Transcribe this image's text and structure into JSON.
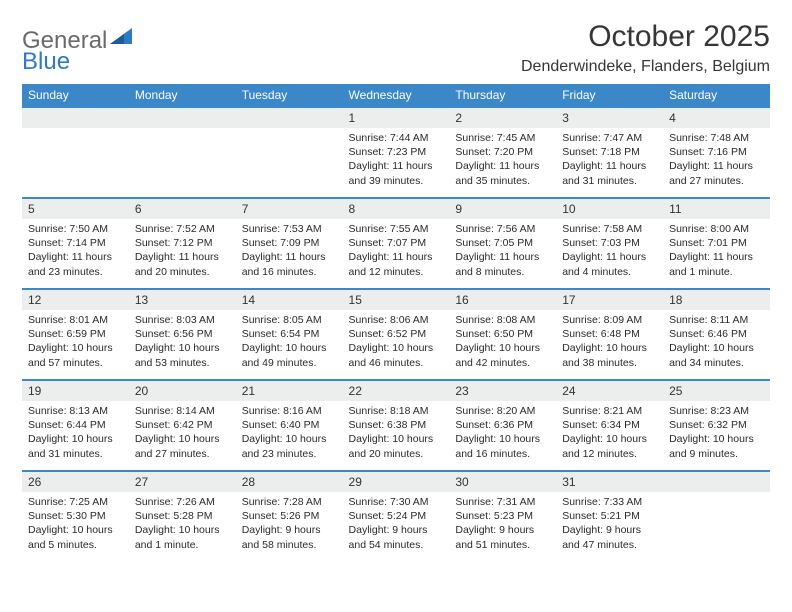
{
  "logo": {
    "text1": "General",
    "text2": "Blue"
  },
  "title": "October 2025",
  "location": "Denderwindeke, Flanders, Belgium",
  "colors": {
    "header_bg": "#3b87c8",
    "header_text": "#ffffff",
    "daynum_bg": "#eceded",
    "border": "#3b87c8",
    "logo_gray": "#6a6a6a",
    "logo_blue": "#2f7ac4"
  },
  "weekdays": [
    "Sunday",
    "Monday",
    "Tuesday",
    "Wednesday",
    "Thursday",
    "Friday",
    "Saturday"
  ],
  "weeks": [
    {
      "nums": [
        "",
        "",
        "",
        "1",
        "2",
        "3",
        "4"
      ],
      "cells": [
        null,
        null,
        null,
        {
          "sunrise": "7:44 AM",
          "sunset": "7:23 PM",
          "daylight": "11 hours and 39 minutes."
        },
        {
          "sunrise": "7:45 AM",
          "sunset": "7:20 PM",
          "daylight": "11 hours and 35 minutes."
        },
        {
          "sunrise": "7:47 AM",
          "sunset": "7:18 PM",
          "daylight": "11 hours and 31 minutes."
        },
        {
          "sunrise": "7:48 AM",
          "sunset": "7:16 PM",
          "daylight": "11 hours and 27 minutes."
        }
      ]
    },
    {
      "nums": [
        "5",
        "6",
        "7",
        "8",
        "9",
        "10",
        "11"
      ],
      "cells": [
        {
          "sunrise": "7:50 AM",
          "sunset": "7:14 PM",
          "daylight": "11 hours and 23 minutes."
        },
        {
          "sunrise": "7:52 AM",
          "sunset": "7:12 PM",
          "daylight": "11 hours and 20 minutes."
        },
        {
          "sunrise": "7:53 AM",
          "sunset": "7:09 PM",
          "daylight": "11 hours and 16 minutes."
        },
        {
          "sunrise": "7:55 AM",
          "sunset": "7:07 PM",
          "daylight": "11 hours and 12 minutes."
        },
        {
          "sunrise": "7:56 AM",
          "sunset": "7:05 PM",
          "daylight": "11 hours and 8 minutes."
        },
        {
          "sunrise": "7:58 AM",
          "sunset": "7:03 PM",
          "daylight": "11 hours and 4 minutes."
        },
        {
          "sunrise": "8:00 AM",
          "sunset": "7:01 PM",
          "daylight": "11 hours and 1 minute."
        }
      ]
    },
    {
      "nums": [
        "12",
        "13",
        "14",
        "15",
        "16",
        "17",
        "18"
      ],
      "cells": [
        {
          "sunrise": "8:01 AM",
          "sunset": "6:59 PM",
          "daylight": "10 hours and 57 minutes."
        },
        {
          "sunrise": "8:03 AM",
          "sunset": "6:56 PM",
          "daylight": "10 hours and 53 minutes."
        },
        {
          "sunrise": "8:05 AM",
          "sunset": "6:54 PM",
          "daylight": "10 hours and 49 minutes."
        },
        {
          "sunrise": "8:06 AM",
          "sunset": "6:52 PM",
          "daylight": "10 hours and 46 minutes."
        },
        {
          "sunrise": "8:08 AM",
          "sunset": "6:50 PM",
          "daylight": "10 hours and 42 minutes."
        },
        {
          "sunrise": "8:09 AM",
          "sunset": "6:48 PM",
          "daylight": "10 hours and 38 minutes."
        },
        {
          "sunrise": "8:11 AM",
          "sunset": "6:46 PM",
          "daylight": "10 hours and 34 minutes."
        }
      ]
    },
    {
      "nums": [
        "19",
        "20",
        "21",
        "22",
        "23",
        "24",
        "25"
      ],
      "cells": [
        {
          "sunrise": "8:13 AM",
          "sunset": "6:44 PM",
          "daylight": "10 hours and 31 minutes."
        },
        {
          "sunrise": "8:14 AM",
          "sunset": "6:42 PM",
          "daylight": "10 hours and 27 minutes."
        },
        {
          "sunrise": "8:16 AM",
          "sunset": "6:40 PM",
          "daylight": "10 hours and 23 minutes."
        },
        {
          "sunrise": "8:18 AM",
          "sunset": "6:38 PM",
          "daylight": "10 hours and 20 minutes."
        },
        {
          "sunrise": "8:20 AM",
          "sunset": "6:36 PM",
          "daylight": "10 hours and 16 minutes."
        },
        {
          "sunrise": "8:21 AM",
          "sunset": "6:34 PM",
          "daylight": "10 hours and 12 minutes."
        },
        {
          "sunrise": "8:23 AM",
          "sunset": "6:32 PM",
          "daylight": "10 hours and 9 minutes."
        }
      ]
    },
    {
      "nums": [
        "26",
        "27",
        "28",
        "29",
        "30",
        "31",
        ""
      ],
      "cells": [
        {
          "sunrise": "7:25 AM",
          "sunset": "5:30 PM",
          "daylight": "10 hours and 5 minutes."
        },
        {
          "sunrise": "7:26 AM",
          "sunset": "5:28 PM",
          "daylight": "10 hours and 1 minute."
        },
        {
          "sunrise": "7:28 AM",
          "sunset": "5:26 PM",
          "daylight": "9 hours and 58 minutes."
        },
        {
          "sunrise": "7:30 AM",
          "sunset": "5:24 PM",
          "daylight": "9 hours and 54 minutes."
        },
        {
          "sunrise": "7:31 AM",
          "sunset": "5:23 PM",
          "daylight": "9 hours and 51 minutes."
        },
        {
          "sunrise": "7:33 AM",
          "sunset": "5:21 PM",
          "daylight": "9 hours and 47 minutes."
        },
        null
      ]
    }
  ],
  "labels": {
    "sunrise": "Sunrise:",
    "sunset": "Sunset:",
    "daylight": "Daylight:"
  }
}
